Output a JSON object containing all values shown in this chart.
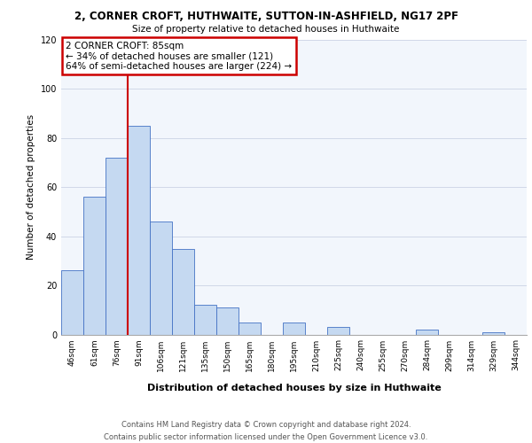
{
  "title_line1": "2, CORNER CROFT, HUTHWAITE, SUTTON-IN-ASHFIELD, NG17 2PF",
  "title_line2": "Size of property relative to detached houses in Huthwaite",
  "xlabel": "Distribution of detached houses by size in Huthwaite",
  "ylabel": "Number of detached properties",
  "categories": [
    "46sqm",
    "61sqm",
    "76sqm",
    "91sqm",
    "106sqm",
    "121sqm",
    "135sqm",
    "150sqm",
    "165sqm",
    "180sqm",
    "195sqm",
    "210sqm",
    "225sqm",
    "240sqm",
    "255sqm",
    "270sqm",
    "284sqm",
    "299sqm",
    "314sqm",
    "329sqm",
    "344sqm"
  ],
  "values": [
    26,
    56,
    72,
    85,
    46,
    35,
    12,
    11,
    5,
    0,
    5,
    0,
    3,
    0,
    0,
    0,
    2,
    0,
    0,
    1,
    0
  ],
  "bar_color": "#c5d9f1",
  "bar_edge_color": "#4472c4",
  "vline_color": "#cc0000",
  "vline_x_index": 3,
  "annotation_box_text": "2 CORNER CROFT: 85sqm\n← 34% of detached houses are smaller (121)\n64% of semi-detached houses are larger (224) →",
  "box_edge_color": "#cc0000",
  "ylim": [
    0,
    120
  ],
  "yticks": [
    0,
    20,
    40,
    60,
    80,
    100,
    120
  ],
  "footer_text": "Contains HM Land Registry data © Crown copyright and database right 2024.\nContains public sector information licensed under the Open Government Licence v3.0.",
  "background_color": "#f2f6fc",
  "grid_color": "#d0d8e8",
  "title1_fontsize": 8.5,
  "title2_fontsize": 7.5,
  "ylabel_fontsize": 7.5,
  "xlabel_fontsize": 8.0,
  "tick_fontsize": 6.5,
  "footer_fontsize": 6.0,
  "ann_fontsize": 7.5
}
